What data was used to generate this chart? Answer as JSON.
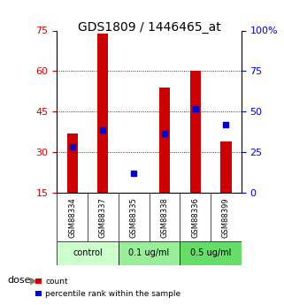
{
  "title": "GDS1809 / 1446465_at",
  "samples": [
    "GSM88334",
    "GSM88337",
    "GSM88335",
    "GSM88338",
    "GSM88336",
    "GSM88399"
  ],
  "bar_heights": [
    37,
    74,
    15,
    54,
    60,
    34
  ],
  "blue_marker_y": [
    32,
    38,
    22,
    37,
    46,
    40
  ],
  "left_ylim": [
    15,
    75
  ],
  "left_yticks": [
    15,
    30,
    45,
    60,
    75
  ],
  "right_ylim": [
    0,
    100
  ],
  "right_yticks": [
    0,
    25,
    50,
    75,
    100
  ],
  "right_yticklabels": [
    "0",
    "25",
    "50",
    "75",
    "100%"
  ],
  "bar_color": "#cc0000",
  "blue_color": "#0000cc",
  "bar_bottom": 15,
  "groups": [
    {
      "label": "control",
      "cols": [
        0,
        1
      ],
      "color": "#ccffcc"
    },
    {
      "label": "0.1 ug/ml",
      "cols": [
        2,
        3
      ],
      "color": "#99ee99"
    },
    {
      "label": "0.5 ug/ml",
      "cols": [
        4,
        5
      ],
      "color": "#66dd66"
    }
  ],
  "sample_bg": "#d0d0d0",
  "dose_label": "dose",
  "legend_count_label": "count",
  "legend_pct_label": "percentile rank within the sample",
  "background_color": "#ffffff",
  "grid_yticks": [
    30,
    45,
    60
  ]
}
